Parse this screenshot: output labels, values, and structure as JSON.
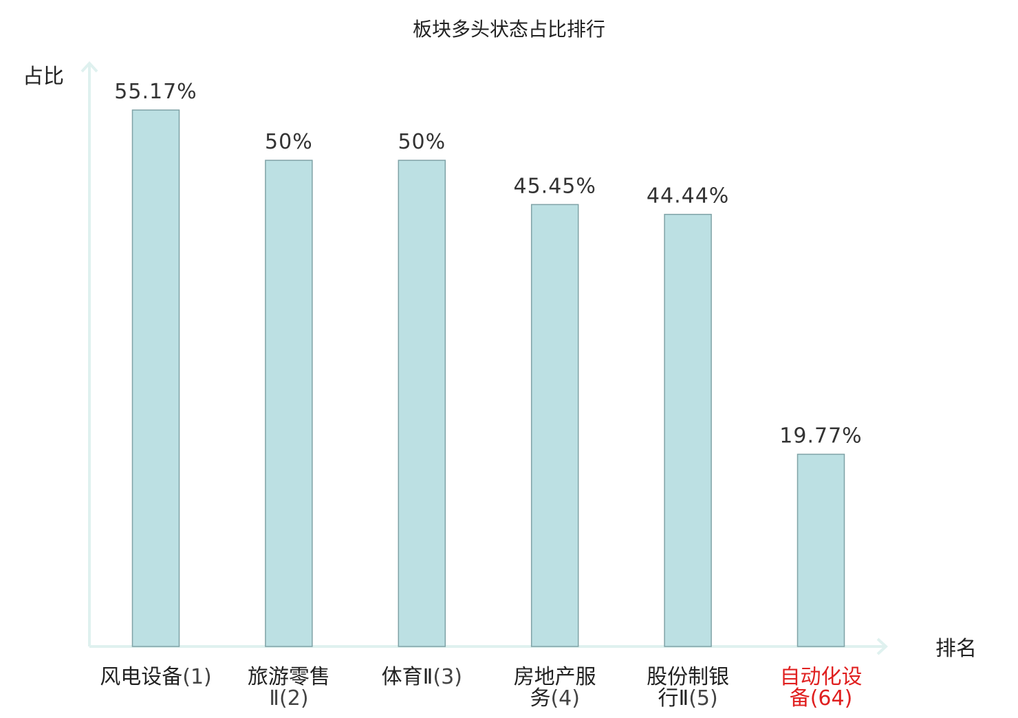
{
  "chart_data": {
    "type": "bar",
    "title": "板块多头状态占比排行",
    "ylabel": "占比",
    "xlabel": "排名",
    "ylim": [
      0,
      60
    ],
    "grid": false,
    "legend": "none",
    "categories": [
      [
        "风电设备",
        "(1)"
      ],
      [
        "旅游零售",
        "Ⅱ(2)"
      ],
      [
        "体育Ⅱ",
        "(3)"
      ],
      [
        "房地产服",
        "务",
        "(4)"
      ],
      [
        "股份制银",
        "行Ⅱ",
        "(5)"
      ],
      [
        "自动化设",
        "备",
        "(64)"
      ]
    ],
    "values": [
      55.17,
      50,
      50,
      45.45,
      44.44,
      19.77
    ],
    "value_labels": [
      "55.17%",
      "50%",
      "50%",
      "45.45%",
      "44.44%",
      "19.77%"
    ],
    "highlight_index": 5,
    "colors": {
      "bar_fill": "#bce0e3",
      "bar_stroke": "#7fa2a6",
      "axis": "#dff1ef",
      "highlight": "#e02020",
      "text": "#222222"
    }
  }
}
